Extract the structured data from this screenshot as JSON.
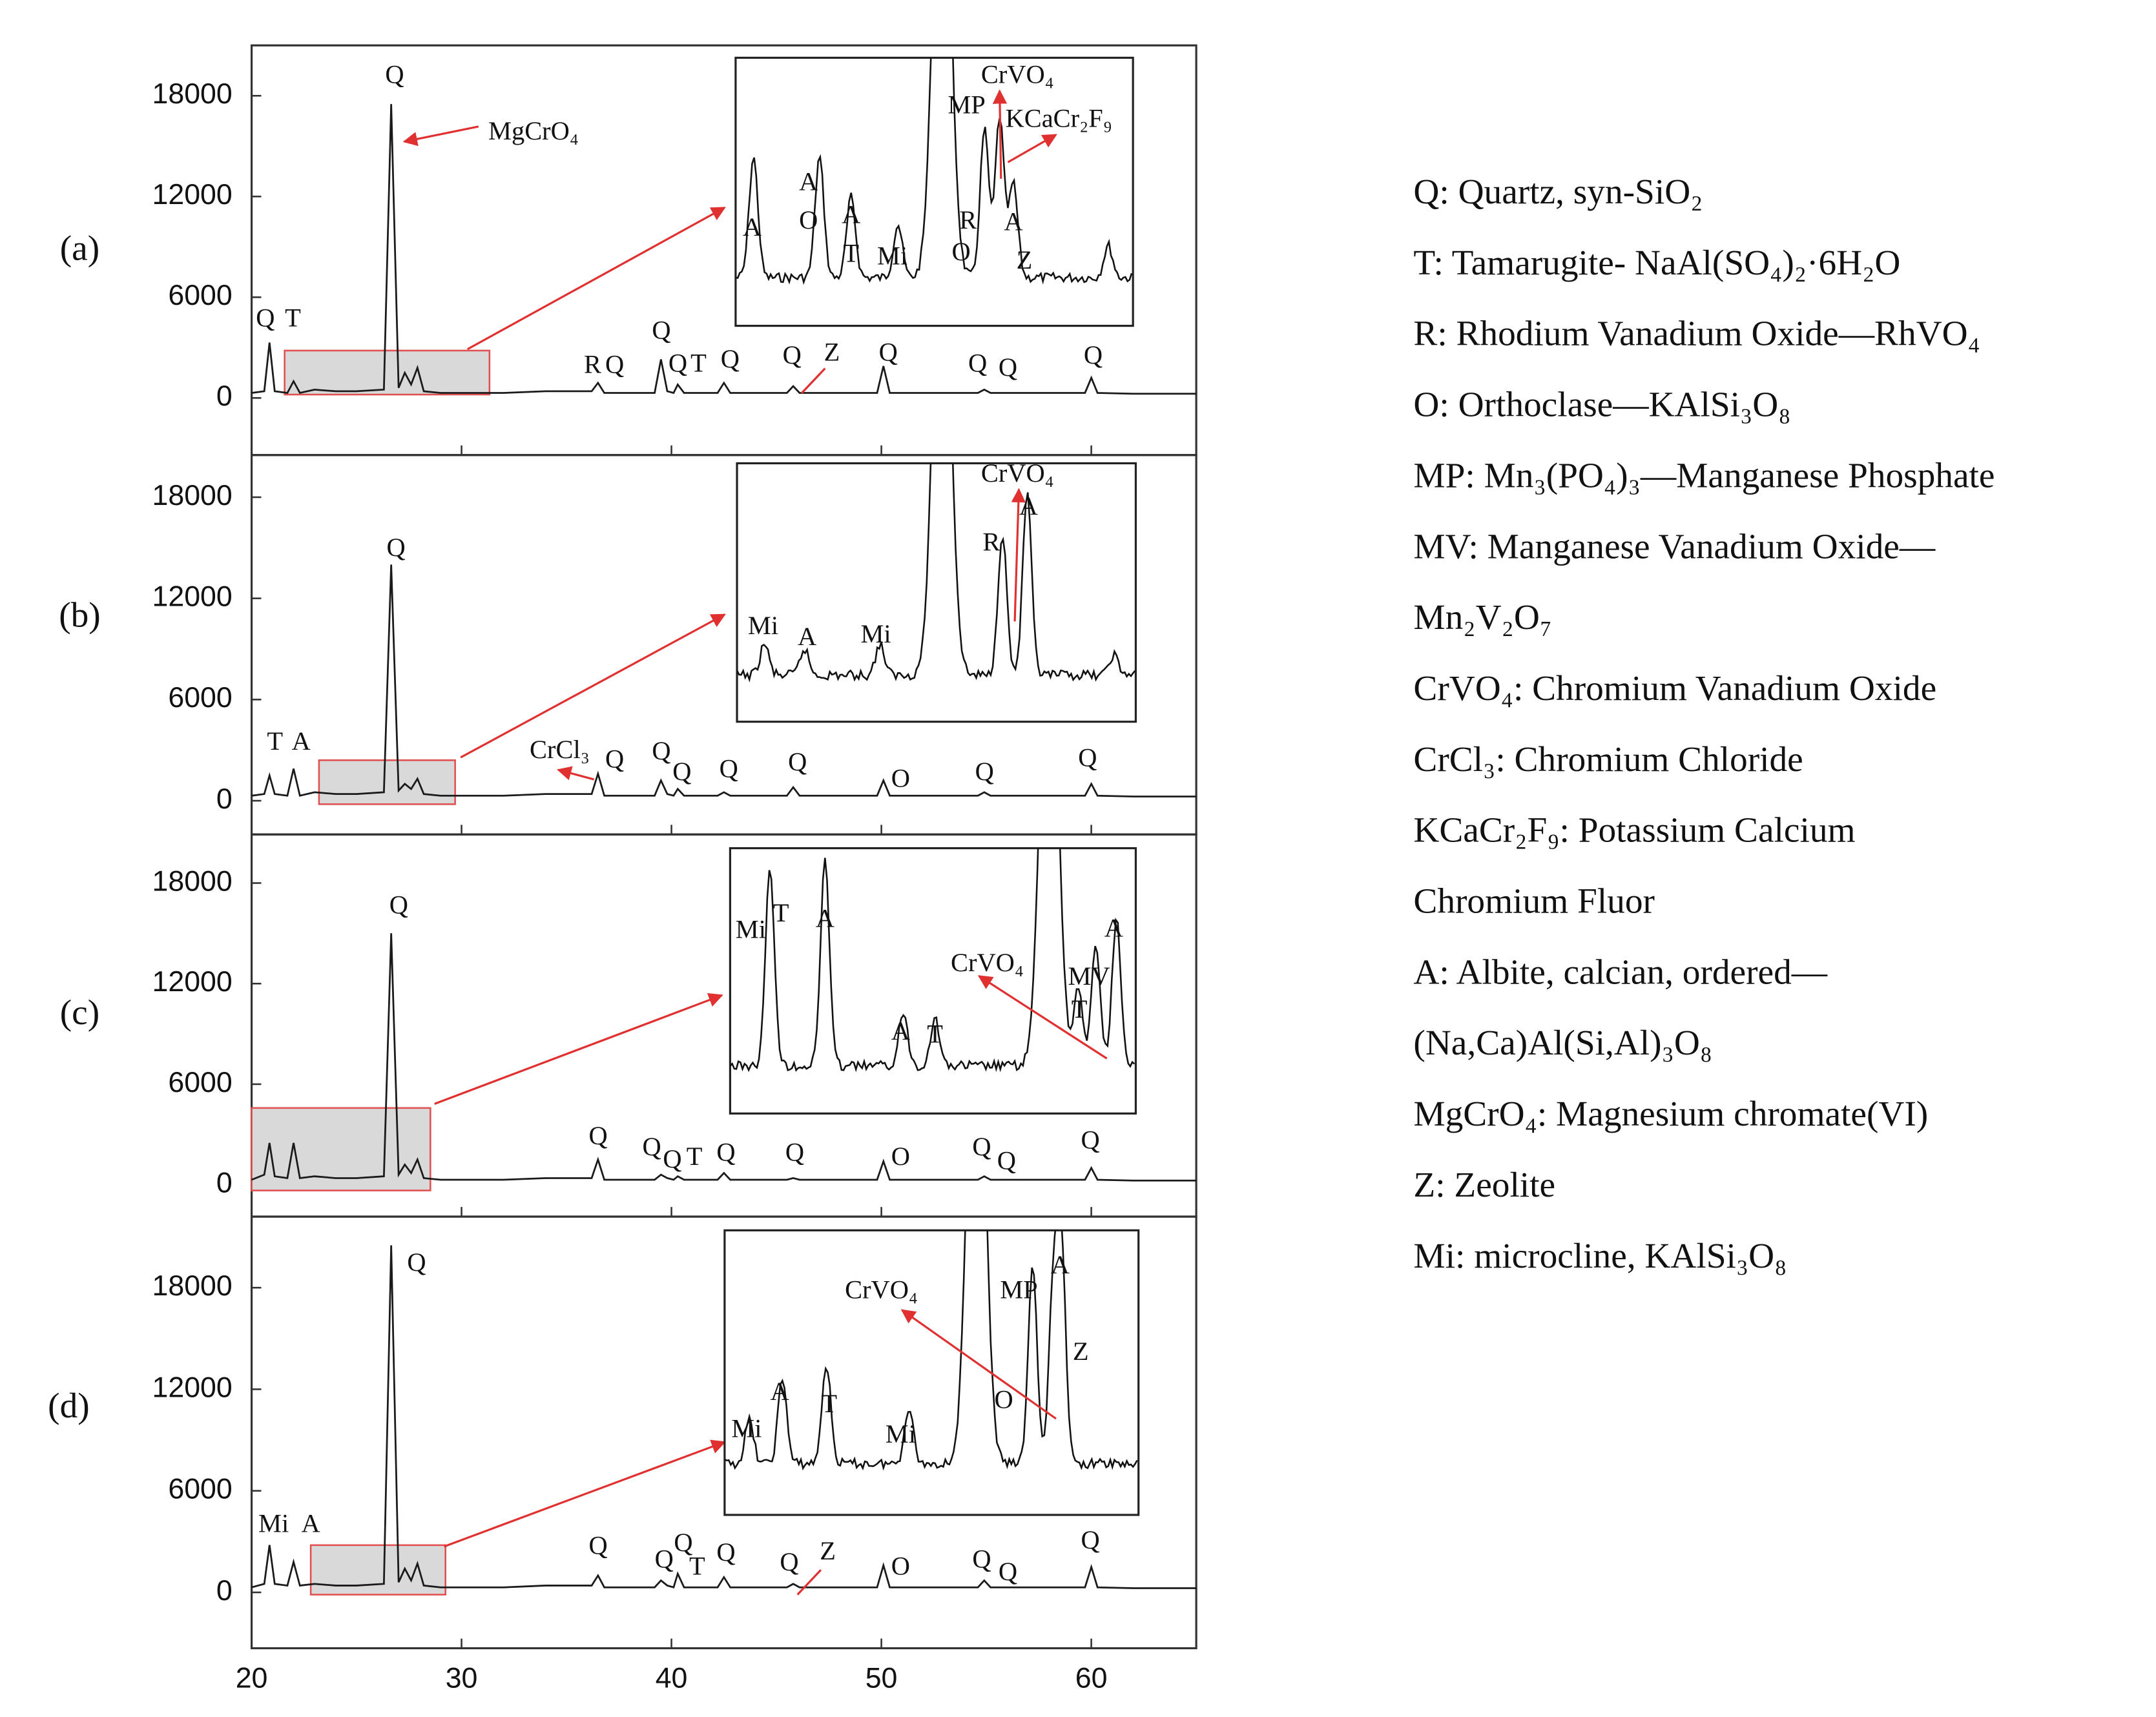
{
  "chart_data": [
    {
      "type": "line",
      "label": "(a)",
      "color": "#1a1a1a",
      "x": [
        20,
        20.6,
        20.85,
        21.1,
        21.7,
        22,
        22.3,
        23,
        24,
        25,
        26.3,
        26.65,
        27,
        27.3,
        27.6,
        27.9,
        28.2,
        29,
        30,
        32,
        34,
        36.2,
        36.5,
        36.8,
        39.2,
        39.5,
        39.8,
        40.1,
        40.3,
        40.6,
        42.2,
        42.5,
        42.8,
        45.5,
        45.8,
        46.1,
        49.8,
        50.1,
        50.4,
        54.6,
        54.9,
        55.2,
        59.7,
        60,
        60.3,
        62,
        65
      ],
      "values": [
        300,
        400,
        3300,
        400,
        300,
        1000,
        300,
        500,
        400,
        400,
        500,
        17500,
        600,
        1500,
        800,
        1800,
        400,
        300,
        300,
        300,
        400,
        400,
        900,
        300,
        300,
        2300,
        400,
        300,
        800,
        300,
        300,
        900,
        300,
        300,
        700,
        300,
        300,
        1900,
        300,
        300,
        500,
        300,
        300,
        1200,
        300,
        250,
        250
      ],
      "xlim": [
        20,
        65
      ],
      "ylim": [
        -3400,
        21000
      ],
      "yticks": [
        0,
        6000,
        12000,
        18000
      ],
      "annotations": [
        "Q",
        "T",
        "Q",
        "MgCrO₄",
        "R",
        "Q",
        "Q",
        "Q",
        "T",
        "Q",
        "Q",
        "Z",
        "Q",
        "Q",
        "Q",
        "Q"
      ],
      "inset_labels": [
        "A",
        "A",
        "O",
        "A",
        "T",
        "Mi",
        "MP",
        "CrVO₄",
        "KCaCr₂F₉",
        "R",
        "O",
        "A",
        "Z"
      ]
    },
    {
      "type": "line",
      "label": "(b)",
      "color": "#1a1a1a",
      "x": [
        20,
        20.6,
        20.85,
        21.1,
        21.7,
        22,
        22.3,
        23,
        24,
        25,
        26.3,
        26.65,
        27,
        27.3,
        27.6,
        27.9,
        28.2,
        29,
        30,
        32,
        34,
        36.2,
        36.5,
        36.8,
        39.2,
        39.5,
        39.8,
        40.1,
        40.3,
        40.6,
        42.2,
        42.5,
        42.8,
        45.5,
        45.8,
        46.1,
        49.8,
        50.1,
        50.4,
        54.6,
        54.9,
        55.2,
        59.7,
        60,
        60.3,
        62,
        65
      ],
      "values": [
        300,
        400,
        1500,
        400,
        300,
        1900,
        300,
        500,
        400,
        400,
        500,
        14000,
        600,
        1000,
        700,
        1300,
        400,
        300,
        300,
        300,
        400,
        400,
        1600,
        300,
        300,
        1200,
        400,
        300,
        700,
        300,
        300,
        500,
        300,
        300,
        800,
        300,
        300,
        1200,
        300,
        300,
        500,
        300,
        300,
        1000,
        300,
        250,
        250
      ],
      "xlim": [
        20,
        65
      ],
      "ylim": [
        -2000,
        20500
      ],
      "yticks": [
        0,
        6000,
        12000,
        18000
      ],
      "annotations": [
        "T",
        "A",
        "Q",
        "CrCl₃",
        "Q",
        "Q",
        "Q",
        "Q",
        "Q",
        "O",
        "Q",
        "Q"
      ],
      "inset_labels": [
        "Mi",
        "A",
        "Mi",
        "R",
        "CrVO₄",
        "A"
      ]
    },
    {
      "type": "line",
      "label": "(c)",
      "color": "#1a1a1a",
      "x": [
        20,
        20.6,
        20.85,
        21.1,
        21.7,
        22,
        22.3,
        23,
        24,
        25,
        26.3,
        26.65,
        27,
        27.3,
        27.6,
        27.9,
        28.2,
        29,
        30,
        32,
        34,
        36.2,
        36.5,
        36.8,
        39.2,
        39.5,
        39.8,
        40.1,
        40.3,
        40.6,
        42.2,
        42.5,
        42.8,
        45.5,
        45.8,
        46.1,
        49.8,
        50.1,
        50.4,
        54.6,
        54.9,
        55.2,
        59.7,
        60,
        60.3,
        62,
        65
      ],
      "values": [
        300,
        600,
        2500,
        500,
        400,
        2500,
        400,
        500,
        400,
        400,
        500,
        15000,
        600,
        1200,
        700,
        1500,
        400,
        300,
        300,
        300,
        400,
        400,
        1500,
        300,
        300,
        600,
        400,
        300,
        500,
        300,
        300,
        700,
        300,
        300,
        400,
        300,
        300,
        1400,
        300,
        300,
        500,
        300,
        300,
        1000,
        300,
        250,
        250
      ],
      "xlim": [
        20,
        65
      ],
      "ylim": [
        -1900,
        20900
      ],
      "yticks": [
        0,
        6000,
        12000,
        18000
      ],
      "annotations": [
        "Q",
        "Q",
        "Q",
        "Q",
        "T",
        "Q",
        "Q",
        "O",
        "Q",
        "Q",
        "Q"
      ],
      "inset_labels": [
        "Mi",
        "T",
        "A",
        "A",
        "T",
        "CrVO₄",
        "MV",
        "T",
        "A"
      ]
    },
    {
      "type": "line",
      "label": "(d)",
      "color": "#1a1a1a",
      "x": [
        20,
        20.6,
        20.85,
        21.1,
        21.7,
        22,
        22.3,
        23,
        24,
        25,
        26.3,
        26.65,
        27,
        27.3,
        27.6,
        27.9,
        28.2,
        29,
        30,
        32,
        34,
        36.2,
        36.5,
        36.8,
        39.2,
        39.5,
        39.8,
        40.1,
        40.3,
        40.6,
        42.2,
        42.5,
        42.8,
        45.5,
        45.8,
        46.1,
        49.8,
        50.1,
        50.4,
        54.6,
        54.9,
        55.2,
        59.7,
        60,
        60.3,
        62,
        65
      ],
      "values": [
        300,
        500,
        2800,
        500,
        400,
        1800,
        400,
        500,
        400,
        400,
        500,
        20500,
        600,
        1400,
        700,
        1700,
        400,
        300,
        300,
        300,
        400,
        400,
        1000,
        300,
        300,
        700,
        400,
        300,
        1100,
        300,
        300,
        900,
        300,
        300,
        500,
        300,
        300,
        1600,
        300,
        300,
        700,
        300,
        300,
        1500,
        300,
        250,
        250
      ],
      "xlim": [
        20,
        65
      ],
      "ylim": [
        -3300,
        22200
      ],
      "yticks": [
        0,
        6000,
        12000,
        18000
      ],
      "xticks": [
        20,
        30,
        40,
        50,
        60
      ],
      "annotations": [
        "Q",
        "Mi",
        "A",
        "Q",
        "Q",
        "Q",
        "T",
        "Q",
        "Q",
        "Z",
        "O",
        "Q",
        "Q",
        "Q"
      ],
      "inset_labels": [
        "CrVO₄",
        "MP",
        "A",
        "Z",
        "Mi",
        "A",
        "T",
        "Mi",
        "O"
      ]
    }
  ],
  "legend": [
    "Q: Quartz, syn-SiO₂",
    "T: Tamarugite- NaAl(SO₄)₂·6H₂O",
    "R: Rhodium Vanadium Oxide—RhVO₄",
    "O: Orthoclase—KAlSi₃O₈",
    "MP: Mn₃(PO₄)₃—Manganese Phosphate",
    "MV: Manganese Vanadium Oxide—",
    "Mn₂V₂O₇",
    "CrVO₄: Chromium Vanadium Oxide",
    "CrCl₃: Chromium Chloride",
    "KCaCr₂F₉: Potassium Calcium",
    "Chromium Fluor",
    "A: Albite, calcian, ordered—",
    "(Na,Ca)Al(Si,Al)₃O₈",
    "MgCrO₄: Magnesium chromate(VI)",
    "Z: Zeolite",
    "Mi: microcline, KAlSi₃O₈"
  ]
}
